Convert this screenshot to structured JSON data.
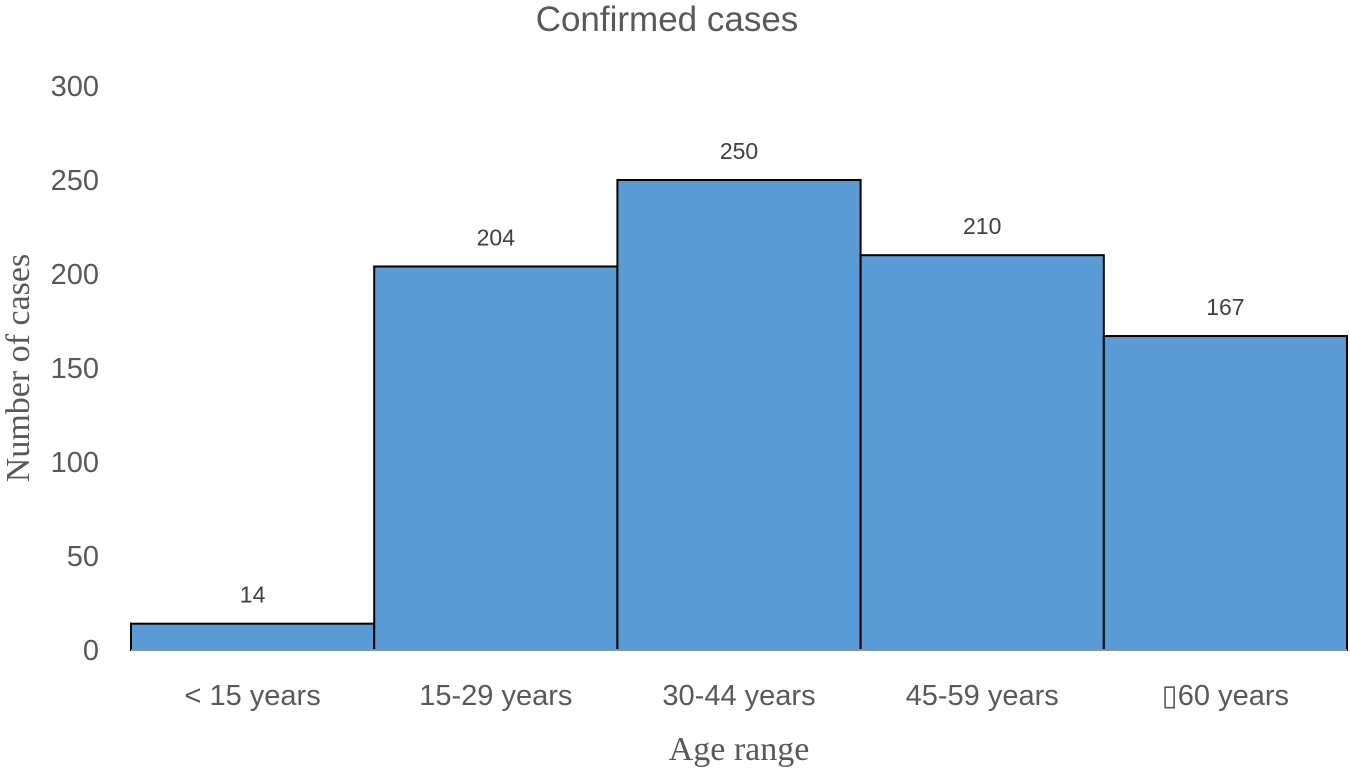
{
  "chart_data": {
    "type": "bar",
    "title": "Confirmed cases",
    "xlabel": "Age range",
    "ylabel": "Number of cases",
    "categories": [
      "< 15 years",
      "15-29 years",
      "30-44 years",
      "45-59 years",
      "▯60 years"
    ],
    "values": [
      14,
      204,
      250,
      210,
      167
    ],
    "data_labels": [
      "14",
      "204",
      "250",
      "210",
      "167"
    ],
    "yticks": [
      0,
      50,
      100,
      150,
      200,
      250,
      300
    ],
    "ylim": [
      0,
      300
    ],
    "grid": false,
    "legend": "none",
    "bar_gap": 0,
    "colors": {
      "bar_fill": "#5B9BD5",
      "bar_stroke": "#000000",
      "axis_text": "#595959",
      "data_label_text": "#404040",
      "axis_line": "#BFBFBF"
    }
  }
}
